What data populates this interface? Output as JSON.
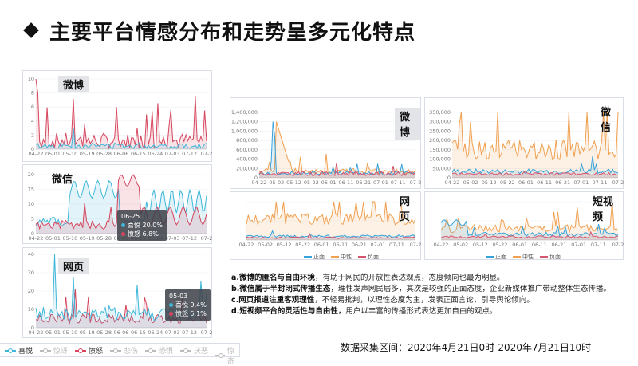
{
  "title": "主要平台情感分布和走势呈多元化特点",
  "colors": {
    "joy": "#3db6d8",
    "angry": "#d6455d",
    "neutral": "#f0a050",
    "positive": "#37a2da",
    "negative": "#d9546e"
  },
  "left_charts": [
    {
      "label": "微博",
      "yticks": [
        "10",
        "8",
        "6",
        "4",
        "2",
        "0"
      ],
      "xticks": [
        "04-22",
        "05-01",
        "05-10",
        "05-19",
        "05-28",
        "06-06",
        "06-15",
        "06-24",
        "07-03",
        "07-12",
        "07-2"
      ]
    },
    {
      "label": "微信",
      "yticks": [
        "20",
        "15",
        "10",
        "5",
        "0"
      ],
      "xticks": [
        "04-22",
        "05-01",
        "05-10",
        "05-19",
        "05-28",
        "06-06",
        "06-15",
        "06-24",
        "07-03",
        "07-12",
        "07-2"
      ],
      "tooltip": {
        "date": "06-25",
        "line1": "喜悦 20.0%",
        "line2": "愤怒 6.8%"
      }
    },
    {
      "label": "网页",
      "yticks": [
        "40",
        "30",
        "20",
        "10",
        "0"
      ],
      "xticks": [
        "04-22",
        "05-01",
        "05-10",
        "05-19",
        "05-28",
        "06-06",
        "06-15",
        "06-24",
        "07-03",
        "07-12",
        "07-2"
      ],
      "tooltip": {
        "date": "05-03",
        "line1": "喜悦 9.4%",
        "line2": "愤怒 5.1%"
      }
    }
  ],
  "left_legend": [
    {
      "label": "喜悦",
      "on": true,
      "color": "#3db6d8"
    },
    {
      "label": "惊讶",
      "on": false,
      "color": "#bbbbbb"
    },
    {
      "label": "愤怒",
      "on": true,
      "color": "#d6455d"
    },
    {
      "label": "悲伤",
      "on": false,
      "color": "#bbbbbb"
    },
    {
      "label": "恐惧",
      "on": false,
      "color": "#bbbbbb"
    },
    {
      "label": "厌恶",
      "on": false,
      "color": "#bbbbbb"
    },
    {
      "label": "惊奇",
      "on": false,
      "color": "#bbbbbb"
    }
  ],
  "mid_charts": [
    {
      "label": "微博",
      "yticks": [
        "1,400,000",
        "1,200,000",
        "1,000,000",
        "800,000",
        "600,000",
        "400,000",
        "200,000",
        "0"
      ],
      "xticks": [
        "04-22",
        "05-02",
        "05-12",
        "05-22",
        "06-01",
        "06-11",
        "06-21",
        "07-01",
        "07-11",
        "07-2"
      ]
    },
    {
      "label": "微信",
      "yticks": [
        "350,000",
        "300,000",
        "250,000",
        "200,000",
        "150,000",
        "100,000",
        "50,000",
        "0"
      ],
      "xticks": [
        "04-22",
        "05-02",
        "05-12",
        "05-22",
        "06-01",
        "06-11",
        "06-21",
        "07-01",
        "07-11",
        "07-2"
      ]
    },
    {
      "label": "网页",
      "yticks": [
        "",
        "",
        ""
      ],
      "xticks": [
        "04-22",
        "05-02",
        "05-12",
        "05-22",
        "06-01",
        "06-11",
        "06-21",
        "07-01",
        "07-11",
        "07-2"
      ]
    },
    {
      "label": "短视频",
      "yticks": [
        "",
        "",
        ""
      ],
      "xticks": [
        "04-22",
        "05-02",
        "05-12",
        "05-22",
        "06-01",
        "06-11",
        "06-21",
        "07-01",
        "07-11",
        "07-2"
      ]
    }
  ],
  "mid_legend": [
    "正面",
    "中性",
    "负面"
  ],
  "notes": [
    {
      "head": "a.微博的匿名与自由环境",
      "body": "，有助于网民的开放性表达观点，态度倾向也最为明显。"
    },
    {
      "head": "b.微信属于半封闭式传播生态",
      "body": "，理性发声网民居多，其次是较强的正面态度，企业新媒体推广带动整体生态传播。"
    },
    {
      "head": "c.网页报道注重客观理性",
      "body": "，不轻易批判，以理性态度为主，发表正面言论，引导舆论倾向。"
    },
    {
      "head": "d.短视频平台的灵活性与自由性",
      "body": "，用户以丰富的传播形式表达更加自由的观点。"
    }
  ],
  "footer": "数据采集区间：2020年4月21日0时-2020年7月21日10时"
}
